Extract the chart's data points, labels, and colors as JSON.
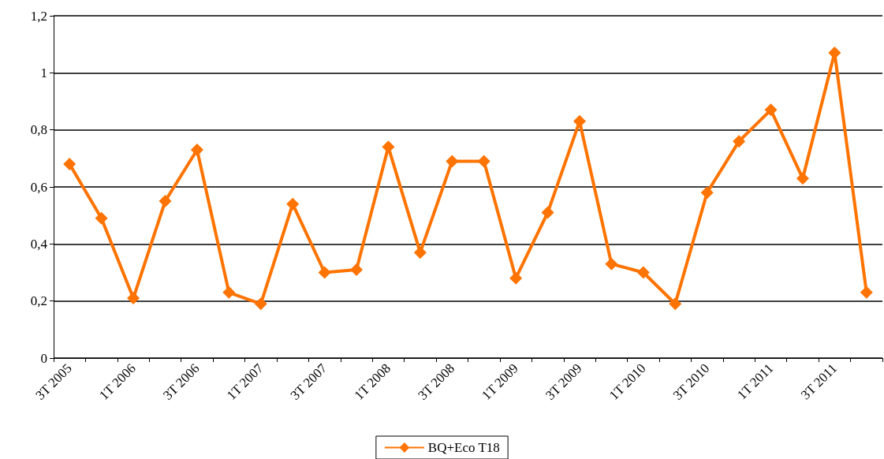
{
  "chart_data": {
    "type": "line",
    "categories": [
      "3T 2005",
      null,
      "1T 2006",
      null,
      "3T 2006",
      null,
      "1T 2007",
      null,
      "3T 2007",
      null,
      "1T 2008",
      null,
      "3T 2008",
      null,
      "1T 2009",
      null,
      "3T 2009",
      null,
      "1T 2010",
      null,
      "3T 2010",
      null,
      "1T 2011",
      null,
      "3T 2011",
      null
    ],
    "series": [
      {
        "name": "BQ+Eco T18",
        "color": "#ff7300",
        "values": [
          0.68,
          0.49,
          0.21,
          0.55,
          0.73,
          0.23,
          0.19,
          0.54,
          0.3,
          0.31,
          0.74,
          0.37,
          0.69,
          0.69,
          0.28,
          0.51,
          0.83,
          0.33,
          0.3,
          0.19,
          0.58,
          0.76,
          0.87,
          0.63,
          1.07,
          0.23
        ]
      }
    ],
    "ylim": [
      0,
      1.2
    ],
    "yticks": [
      0,
      {
        "value": 0.2,
        "label": "0,2"
      },
      {
        "value": 0.4,
        "label": "0,4"
      },
      {
        "value": 0.6,
        "label": "0,6"
      },
      {
        "value": 0.8,
        "label": "0,8"
      },
      1,
      {
        "value": 1.2,
        "label": "1,2"
      }
    ],
    "grid": "y",
    "legend": "bottom",
    "marker": "diamond",
    "line_style": "solid"
  }
}
